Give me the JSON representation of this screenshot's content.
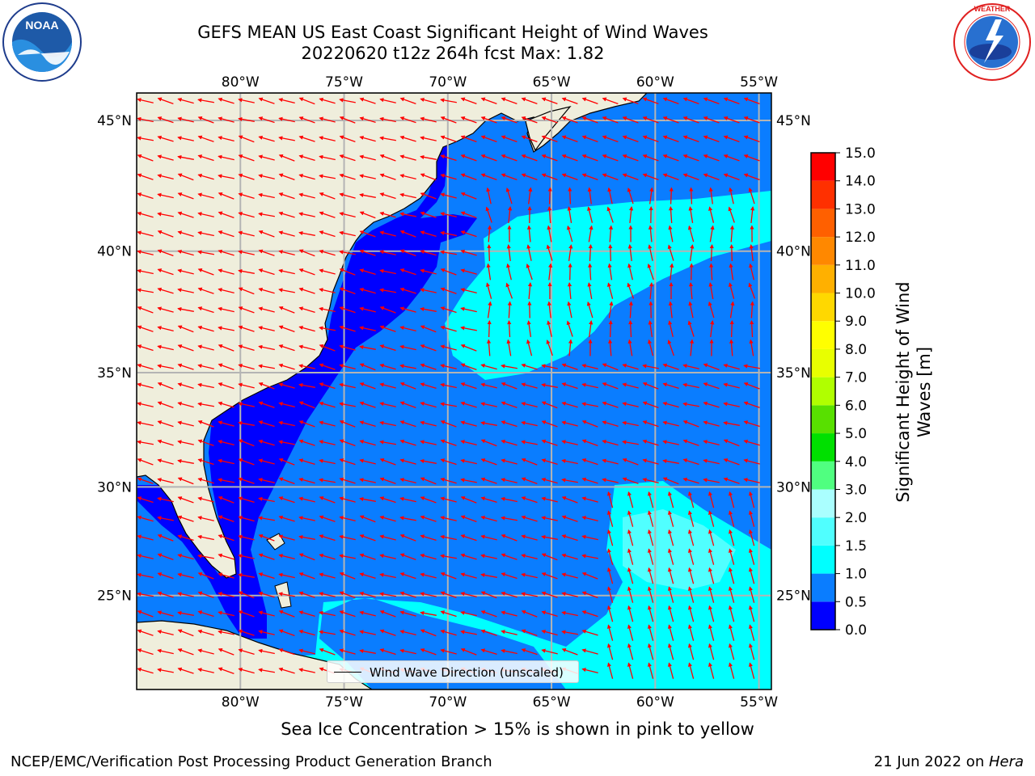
{
  "header": {
    "title_line1": "GEFS MEAN US East Coast Significant Height of Wind Waves",
    "title_line2": "20220620 t12z 264h fcst   Max: 1.82"
  },
  "logos": {
    "noaa": {
      "text": "NOAA",
      "ring_text": "NATIONAL OCEANIC AND ATMOSPHERIC ADMINISTRATION · U.S. DEPARTMENT OF COMMERCE"
    },
    "nws": {
      "ring_text": "NATIONAL WEATHER SERVICE"
    }
  },
  "map": {
    "lon_ticks": [
      "80°W",
      "75°W",
      "70°W",
      "65°W",
      "60°W",
      "55°W"
    ],
    "lat_ticks": [
      "45°N",
      "40°N",
      "35°N",
      "30°N",
      "25°N"
    ],
    "extent": {
      "lon_min": -85,
      "lon_max": -54.4,
      "lat_min": 20.5,
      "lat_max": 46
    },
    "colors": {
      "land": "#efeedc",
      "coastline": "#000000",
      "grid": "#b4b4b4",
      "arrow": "#ff0000"
    },
    "legend": {
      "label": "Wind Wave Direction (unscaled)"
    }
  },
  "colorbar": {
    "title": "Significant Height of Wind Waves [m]",
    "ticks": [
      "0.0",
      "0.5",
      "1.0",
      "1.5",
      "2.0",
      "3.0",
      "4.0",
      "5.0",
      "6.0",
      "7.0",
      "8.0",
      "9.0",
      "10.0",
      "11.0",
      "12.0",
      "13.0",
      "14.0",
      "15.0"
    ],
    "colors": [
      "#0000ff",
      "#0a7dff",
      "#00ffff",
      "#50ffff",
      "#aaffff",
      "#50ff80",
      "#00e000",
      "#58e000",
      "#b0ff00",
      "#e8ff00",
      "#ffff00",
      "#ffd800",
      "#ffb000",
      "#ff8800",
      "#ff6000",
      "#ff3000",
      "#ff0000"
    ]
  },
  "captions": {
    "ice_note": "Sea Ice Concentration > 15% is shown in pink to yellow",
    "footer_left": "NCEP/EMC/Verification Post Processing Product Generation Branch",
    "footer_date": "21 Jun 2022 on ",
    "footer_host": "Hera"
  }
}
